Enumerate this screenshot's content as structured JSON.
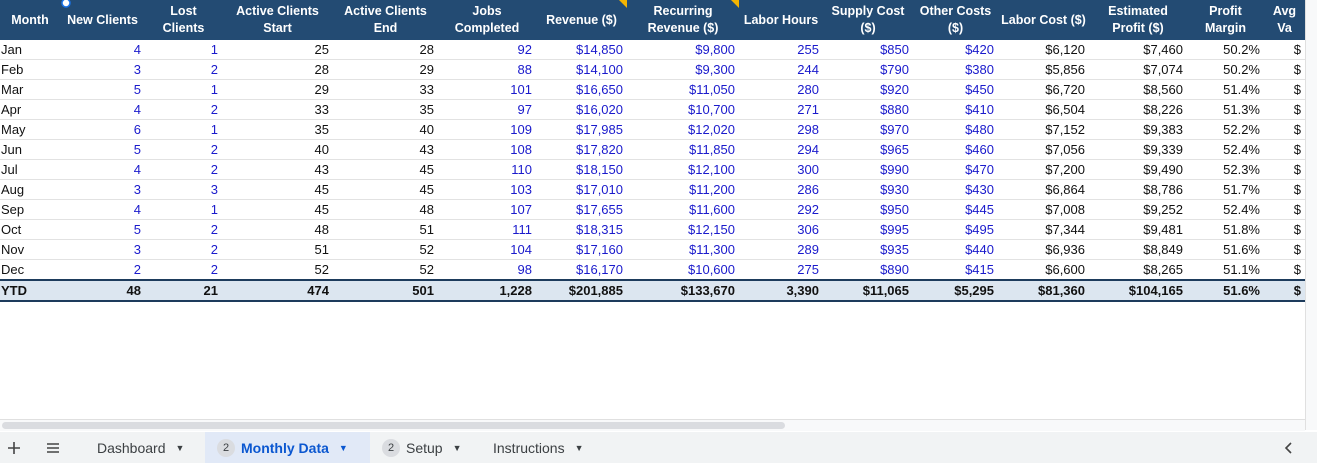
{
  "table": {
    "header": [
      "Month",
      "New Clients",
      "Lost Clients",
      "Active Clients Start",
      "Active Clients End",
      "Jobs Completed",
      "Revenue ($)",
      "Recurring Revenue ($)",
      "Labor Hours",
      "Supply Cost ($)",
      "Other Costs ($)",
      "Labor Cost ($)",
      "Estimated Profit ($)",
      "Profit Margin",
      "Avg Va"
    ],
    "rows": [
      [
        "Jan",
        "4",
        "1",
        "25",
        "28",
        "92",
        "$14,850",
        "$9,800",
        "255",
        "$850",
        "$420",
        "$6,120",
        "$7,460",
        "50.2%",
        "$"
      ],
      [
        "Feb",
        "3",
        "2",
        "28",
        "29",
        "88",
        "$14,100",
        "$9,300",
        "244",
        "$790",
        "$380",
        "$5,856",
        "$7,074",
        "50.2%",
        "$"
      ],
      [
        "Mar",
        "5",
        "1",
        "29",
        "33",
        "101",
        "$16,650",
        "$11,050",
        "280",
        "$920",
        "$450",
        "$6,720",
        "$8,560",
        "51.4%",
        "$"
      ],
      [
        "Apr",
        "4",
        "2",
        "33",
        "35",
        "97",
        "$16,020",
        "$10,700",
        "271",
        "$880",
        "$410",
        "$6,504",
        "$8,226",
        "51.3%",
        "$"
      ],
      [
        "May",
        "6",
        "1",
        "35",
        "40",
        "109",
        "$17,985",
        "$12,020",
        "298",
        "$970",
        "$480",
        "$7,152",
        "$9,383",
        "52.2%",
        "$"
      ],
      [
        "Jun",
        "5",
        "2",
        "40",
        "43",
        "108",
        "$17,820",
        "$11,850",
        "294",
        "$965",
        "$460",
        "$7,056",
        "$9,339",
        "52.4%",
        "$"
      ],
      [
        "Jul",
        "4",
        "2",
        "43",
        "45",
        "110",
        "$18,150",
        "$12,100",
        "300",
        "$990",
        "$470",
        "$7,200",
        "$9,490",
        "52.3%",
        "$"
      ],
      [
        "Aug",
        "3",
        "3",
        "45",
        "45",
        "103",
        "$17,010",
        "$11,200",
        "286",
        "$930",
        "$430",
        "$6,864",
        "$8,786",
        "51.7%",
        "$"
      ],
      [
        "Sep",
        "4",
        "1",
        "45",
        "48",
        "107",
        "$17,655",
        "$11,600",
        "292",
        "$950",
        "$445",
        "$7,008",
        "$9,252",
        "52.4%",
        "$"
      ],
      [
        "Oct",
        "5",
        "2",
        "48",
        "51",
        "111",
        "$18,315",
        "$12,150",
        "306",
        "$995",
        "$495",
        "$7,344",
        "$9,481",
        "51.8%",
        "$"
      ],
      [
        "Nov",
        "3",
        "2",
        "51",
        "52",
        "104",
        "$17,160",
        "$11,300",
        "289",
        "$935",
        "$440",
        "$6,936",
        "$8,849",
        "51.6%",
        "$"
      ],
      [
        "Dec",
        "2",
        "2",
        "52",
        "52",
        "98",
        "$16,170",
        "$10,600",
        "275",
        "$890",
        "$415",
        "$6,600",
        "$8,265",
        "51.1%",
        "$"
      ]
    ],
    "total": [
      "YTD",
      "48",
      "21",
      "474",
      "501",
      "1,228",
      "$201,885",
      "$133,670",
      "3,390",
      "$11,065",
      "$5,295",
      "$81,360",
      "$104,165",
      "51.6%",
      "$"
    ]
  },
  "tabs": [
    {
      "label": "Dashboard"
    },
    {
      "label": "Monthly Data",
      "badge": "2",
      "active": true
    },
    {
      "label": "Setup",
      "badge": "2"
    },
    {
      "label": "Instructions"
    }
  ]
}
